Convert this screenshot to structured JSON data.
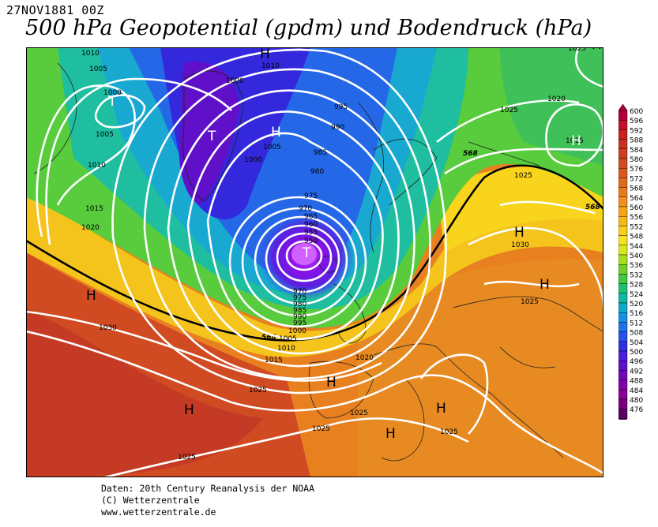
{
  "header": {
    "date": "27NOV1881 00Z",
    "title": "500 hPa Geopotential (gpdm) und Bodendruck (hPa)"
  },
  "footer": {
    "line1": "Daten: 20th Century Reanalysis der NOAA",
    "line2": "(C) Wetterzentrale",
    "line3": "www.wetterzentrale.de"
  },
  "legend": {
    "levels": [
      "600",
      "596",
      "592",
      "588",
      "584",
      "580",
      "576",
      "572",
      "568",
      "564",
      "560",
      "556",
      "552",
      "548",
      "544",
      "540",
      "536",
      "532",
      "528",
      "524",
      "520",
      "516",
      "512",
      "508",
      "504",
      "500",
      "496",
      "492",
      "488",
      "484",
      "480",
      "476"
    ],
    "colors": [
      "#b0003a",
      "#c0102a",
      "#c82020",
      "#c83020",
      "#cc3e20",
      "#d04c20",
      "#d85a1c",
      "#e06a1c",
      "#e87c1c",
      "#f0901e",
      "#f4a41c",
      "#f8b81c",
      "#f8d01c",
      "#f4e41e",
      "#d8e81e",
      "#a8dc1e",
      "#70d028",
      "#40c840",
      "#20c070",
      "#10b8a0",
      "#10a8c8",
      "#1890e0",
      "#2070e8",
      "#2850e8",
      "#3030e0",
      "#4820d8",
      "#5c10c8",
      "#7008b8",
      "#7c04a8",
      "#880094",
      "#780078",
      "#5a0060"
    ]
  },
  "map": {
    "contour_568_label": "568",
    "pressure_labels": [
      "1010",
      "1005",
      "1000",
      "1010",
      "1000",
      "1005",
      "1000",
      "995",
      "990",
      "985",
      "980",
      "975",
      "970",
      "965",
      "960",
      "955",
      "950",
      "970",
      "975",
      "980",
      "985",
      "990",
      "995",
      "1000",
      "1005",
      "1010",
      "1015",
      "1020",
      "1025",
      "1025",
      "1030",
      "1025",
      "1025",
      "1025",
      "1025",
      "1025",
      "1020",
      "1015",
      "1025",
      "1015",
      "1010",
      "1005",
      "1020",
      "1030",
      "1025"
    ],
    "centers": [
      "H",
      "H",
      "T",
      "T",
      "H",
      "T",
      "H",
      "H",
      "H",
      "H",
      "H",
      "H",
      "H",
      "H"
    ]
  }
}
